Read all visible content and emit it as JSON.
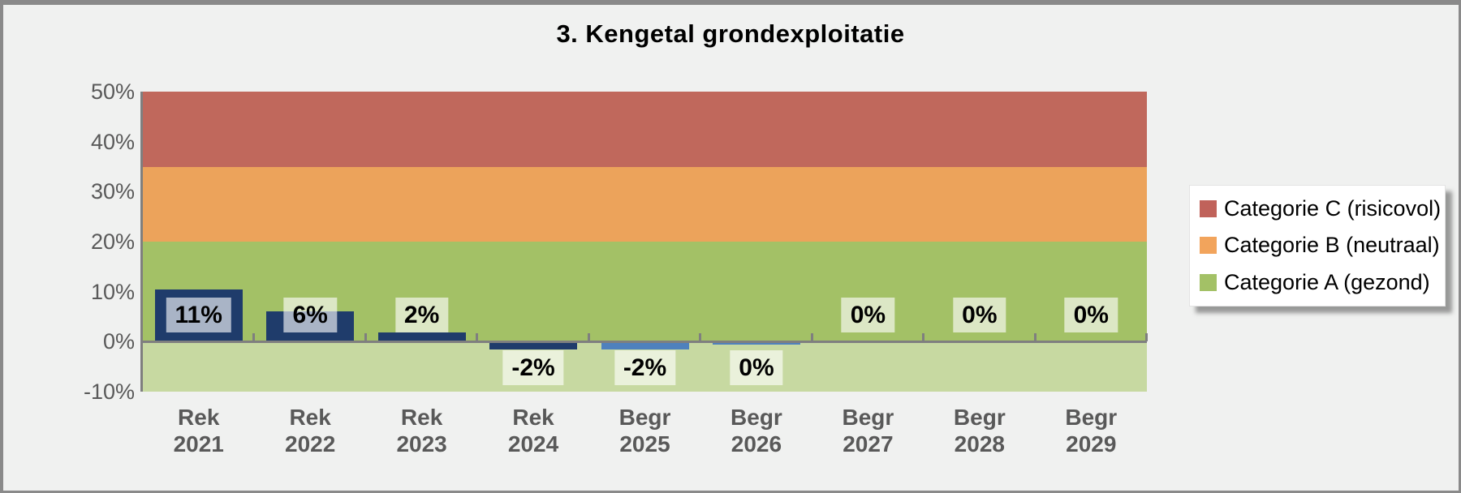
{
  "title": "3. Kengetal grondexploitatie",
  "colors": {
    "background": "#F0F1F0",
    "frame_border": "#8A8A8A",
    "axis_line": "#7F7F7F",
    "axis_text": "#595959",
    "data_label_background": "rgba(255,255,255,0.62)",
    "bar_dark_blue": "#1F3C6B",
    "bar_medium_blue": "#4F81BD"
  },
  "chart_data": {
    "type": "bar",
    "title": "3. Kengetal grondexploitatie",
    "xlabel": "",
    "ylabel": "",
    "ylim": [
      -10,
      50
    ],
    "grid": false,
    "legend_position": "right",
    "yticks": [
      {
        "value": 50,
        "label": "50%"
      },
      {
        "value": 40,
        "label": "40%"
      },
      {
        "value": 30,
        "label": "30%"
      },
      {
        "value": 20,
        "label": "20%"
      },
      {
        "value": 10,
        "label": "10%"
      },
      {
        "value": 0,
        "label": "0%"
      },
      {
        "value": -10,
        "label": "-10%"
      }
    ],
    "bands": [
      {
        "name": "categorie-c-band",
        "from": 35,
        "to": 50,
        "color": "#C0685C"
      },
      {
        "name": "categorie-b-band",
        "from": 20,
        "to": 35,
        "color": "#ECA35B"
      },
      {
        "name": "categorie-a-band",
        "from": 0,
        "to": 20,
        "color": "#A3C166"
      },
      {
        "name": "below-zero-band",
        "from": -10,
        "to": 0,
        "color": "#C7D9A1"
      }
    ],
    "points": [
      {
        "category": {
          "line1": "Rek",
          "line2": "2021"
        },
        "label": "11%",
        "value": 11,
        "render_value": 10.5,
        "bar_color": "#1F3C6B",
        "label_below": false
      },
      {
        "category": {
          "line1": "Rek",
          "line2": "2022"
        },
        "label": "6%",
        "value": 6,
        "render_value": 6.0,
        "bar_color": "#1F3C6B",
        "label_below": false
      },
      {
        "category": {
          "line1": "Rek",
          "line2": "2023"
        },
        "label": "2%",
        "value": 2,
        "render_value": 1.8,
        "bar_color": "#1F3C6B",
        "label_below": false
      },
      {
        "category": {
          "line1": "Rek",
          "line2": "2024"
        },
        "label": "-2%",
        "value": -2,
        "render_value": -1.5,
        "bar_color": "#1F3C6B",
        "label_below": true
      },
      {
        "category": {
          "line1": "Begr",
          "line2": "2025"
        },
        "label": "-2%",
        "value": -2,
        "render_value": -1.5,
        "bar_color": "#4F81BD",
        "label_below": true
      },
      {
        "category": {
          "line1": "Begr",
          "line2": "2026"
        },
        "label": "0%",
        "value": 0,
        "render_value": -0.55,
        "bar_color": "#4F81BD",
        "label_below": true
      },
      {
        "category": {
          "line1": "Begr",
          "line2": "2027"
        },
        "label": "0%",
        "value": 0,
        "render_value": 0,
        "bar_color": "#4F81BD",
        "label_below": false
      },
      {
        "category": {
          "line1": "Begr",
          "line2": "2028"
        },
        "label": "0%",
        "value": 0,
        "render_value": 0,
        "bar_color": "#4F81BD",
        "label_below": false
      },
      {
        "category": {
          "line1": "Begr",
          "line2": "2029"
        },
        "label": "0%",
        "value": 0,
        "render_value": 0,
        "bar_color": "#4F81BD",
        "label_below": false
      }
    ],
    "legend": [
      {
        "label": "Categorie C (risicovol)",
        "color": "#C0625A"
      },
      {
        "label": "Categorie B (neutraal)",
        "color": "#F2A45C"
      },
      {
        "label": "Categorie A (gezond)",
        "color": "#A3C166"
      }
    ]
  }
}
